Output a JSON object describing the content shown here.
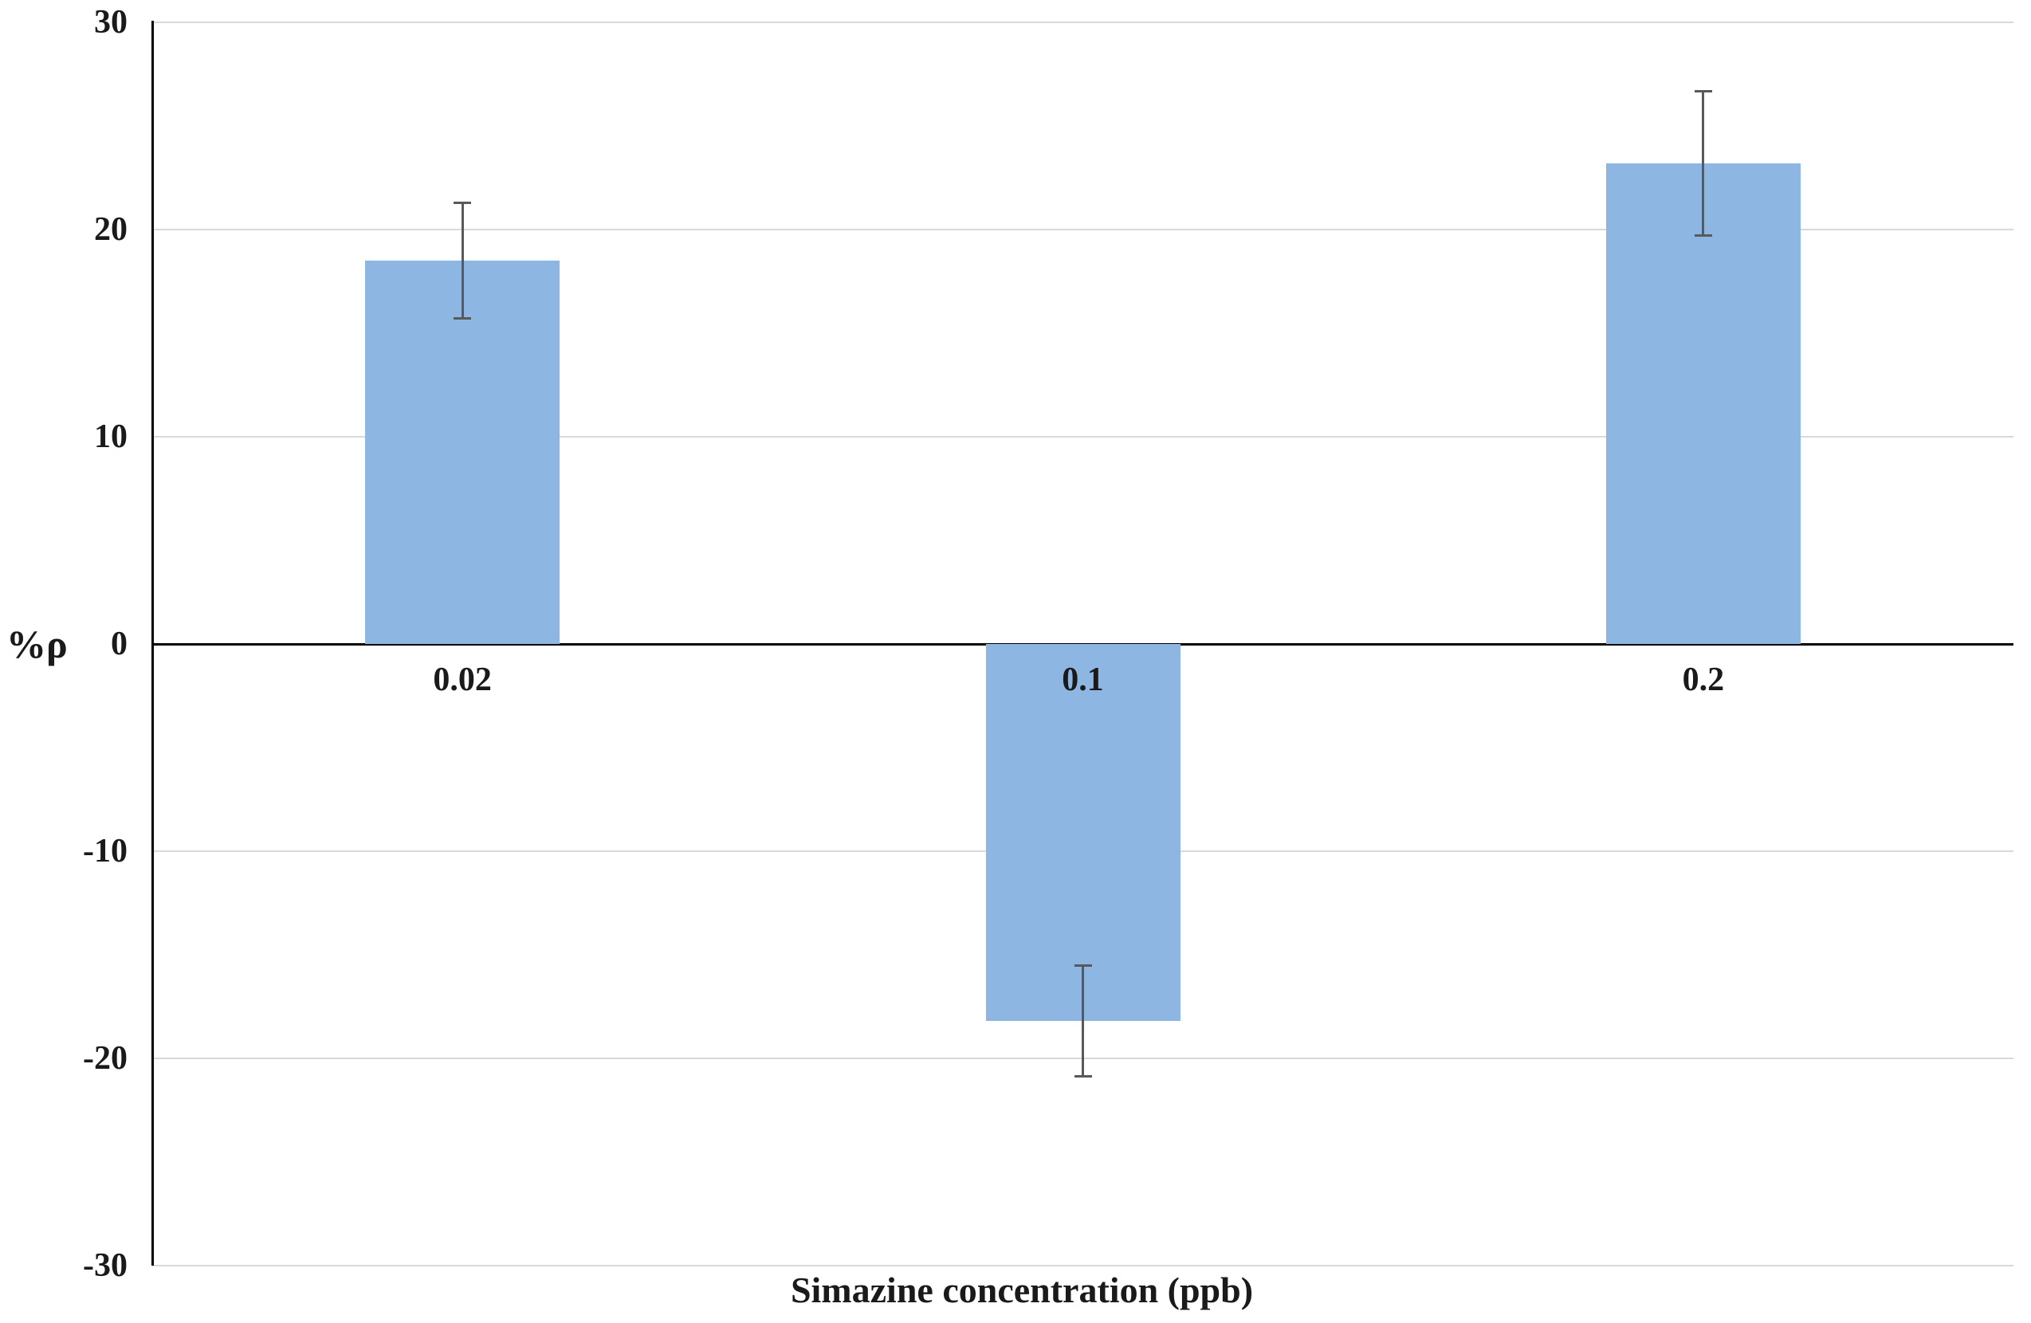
{
  "chart_data": {
    "type": "bar",
    "title": "",
    "xlabel": "Simazine concentration (ppb)",
    "ylabel": "%ρ",
    "categories": [
      "0.02",
      "0.1",
      "0.2"
    ],
    "values": [
      18.5,
      -18.2,
      23.2
    ],
    "error_bars": [
      2.8,
      2.7,
      3.5
    ],
    "y_ticks": [
      30,
      20,
      10,
      0,
      -10,
      -20,
      -30
    ],
    "ylim": [
      -30,
      30
    ],
    "grid": "horizontal",
    "legend_position": "none",
    "bar_color": "#8DB6E2",
    "error_bar_color": "#595959",
    "gridline_color": "#D9D9D9",
    "axis_color": "#000000",
    "text_color": "#1a1a1a",
    "background_color": "#ffffff"
  }
}
